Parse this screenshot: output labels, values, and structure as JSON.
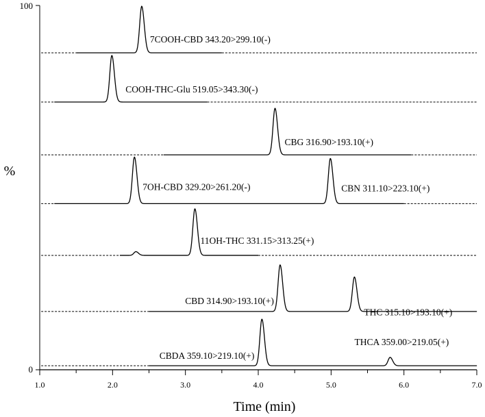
{
  "chart_data": {
    "type": "line",
    "title": "",
    "xlabel": "Time (min)",
    "ylabel": "%",
    "xlim": [
      1.0,
      7.0
    ],
    "xticks": [
      "1.0",
      "2.0",
      "3.0",
      "4.0",
      "5.0",
      "6.0",
      "7.0"
    ],
    "yticks": [
      "0",
      "100"
    ],
    "grid": false,
    "legend": "none",
    "line_color": "#000000",
    "traces": [
      {
        "baseline_level": 0.87,
        "peaks": [
          {
            "label": "7COOH-CBD 343.20>299.10(-)",
            "rt": 2.4,
            "rel_height": 1.0
          }
        ]
      },
      {
        "baseline_level": 0.735,
        "peaks": [
          {
            "label": "COOH-THC-Glu 519.05>343.30(-)",
            "rt": 1.99,
            "rel_height": 1.0
          }
        ]
      },
      {
        "baseline_level": 0.59,
        "peaks": [
          {
            "label": "CBG 316.90>193.10(+)",
            "rt": 4.23,
            "rel_height": 1.0
          }
        ]
      },
      {
        "baseline_level": 0.456,
        "peaks": [
          {
            "label": "7OH-CBD 329.20>261.20(-)",
            "rt": 2.3,
            "rel_height": 1.0
          },
          {
            "label": "CBN 311.10>223.10(+)",
            "rt": 4.99,
            "rel_height": 0.97
          }
        ]
      },
      {
        "baseline_level": 0.314,
        "peaks": [
          {
            "label": "",
            "rt": 2.32,
            "rel_height": 0.08
          },
          {
            "label": "11OH-THC 331.15>313.25(+)",
            "rt": 3.13,
            "rel_height": 1.0
          }
        ]
      },
      {
        "baseline_level": 0.16,
        "peaks": [
          {
            "label": "CBD 314.90>193.10(+)",
            "rt": 4.3,
            "rel_height": 1.0
          },
          {
            "label": "THC 315.10>193.10(+)",
            "rt": 5.32,
            "rel_height": 0.74
          }
        ]
      },
      {
        "baseline_level": 0.011,
        "peaks": [
          {
            "label": "CBDA 359.10>219.10(+)",
            "rt": 4.05,
            "rel_height": 1.0
          },
          {
            "label": "THCA 359.00>219.05(+)",
            "rt": 5.81,
            "rel_height": 0.18
          }
        ]
      }
    ]
  }
}
